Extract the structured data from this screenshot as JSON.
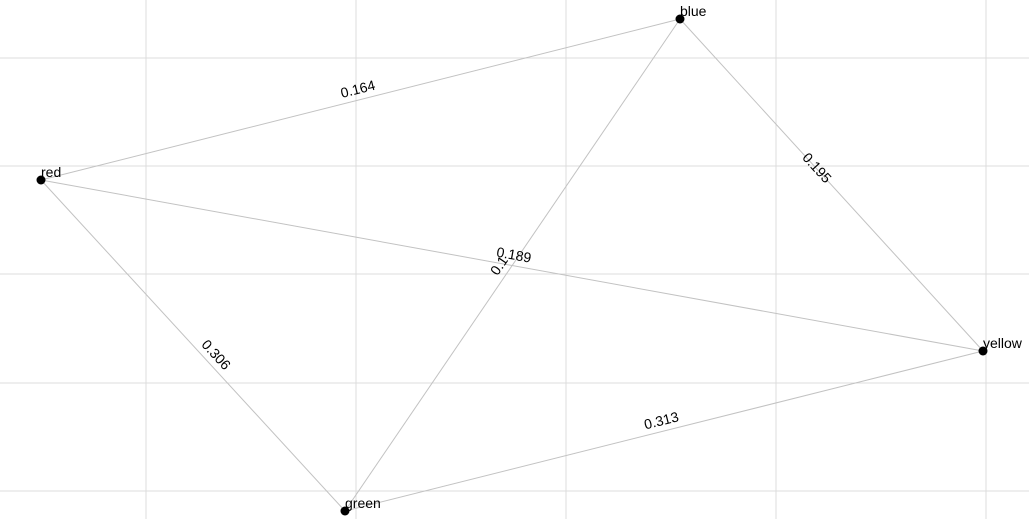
{
  "graph": {
    "nodes": [
      {
        "id": "red",
        "label": "red"
      },
      {
        "id": "blue",
        "label": "blue"
      },
      {
        "id": "yellow",
        "label": "yellow"
      },
      {
        "id": "green",
        "label": "green"
      }
    ],
    "edges": [
      {
        "from": "red",
        "to": "blue",
        "weight": "0.164"
      },
      {
        "from": "blue",
        "to": "yellow",
        "weight": "0.195"
      },
      {
        "from": "red",
        "to": "green",
        "weight": "0.306"
      },
      {
        "from": "green",
        "to": "yellow",
        "weight": "0.313"
      },
      {
        "from": "red",
        "to": "yellow",
        "weight": "0.189"
      },
      {
        "from": "blue",
        "to": "green",
        "weight": "0.1"
      }
    ],
    "colors": {
      "background": "#ffffff",
      "grid": "#dcdcdc",
      "edge": "#c2c2c2",
      "node": "#000000",
      "text": "#000000"
    }
  }
}
